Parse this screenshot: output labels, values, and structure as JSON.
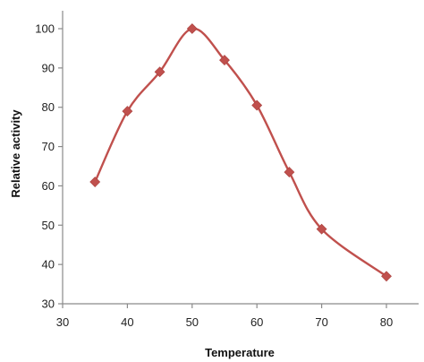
{
  "chart_data": {
    "type": "line",
    "title": "",
    "xlabel": "Temperature",
    "ylabel": "Relative activity",
    "xlim": [
      30,
      85
    ],
    "ylim": [
      30,
      105
    ],
    "x_ticks": [
      30,
      40,
      50,
      60,
      70,
      80
    ],
    "y_ticks": [
      30,
      40,
      50,
      60,
      70,
      80,
      90,
      100
    ],
    "grid": false,
    "legend": "none",
    "series": [
      {
        "color": "#c0504d",
        "marker": "diamond",
        "smooth": true,
        "x": [
          35,
          40,
          45,
          50,
          55,
          60,
          65,
          70,
          80
        ],
        "y": [
          61,
          79,
          89,
          100,
          92,
          80.5,
          63.5,
          49,
          37
        ]
      }
    ]
  }
}
